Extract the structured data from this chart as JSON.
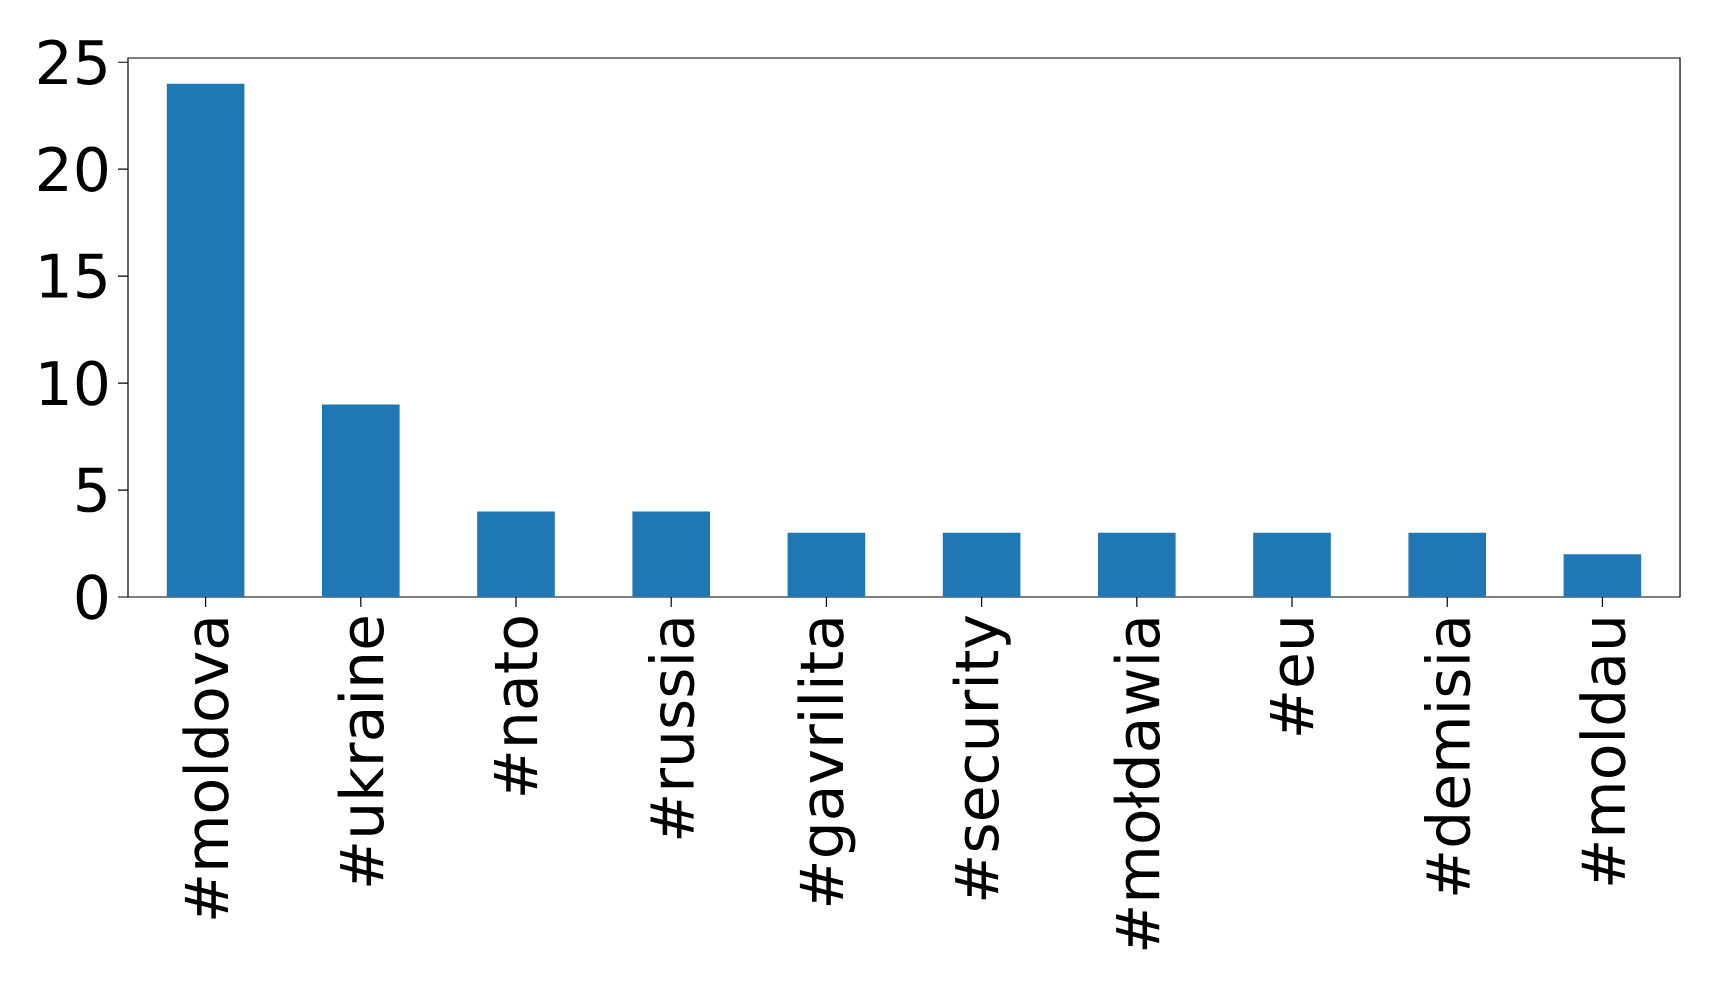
{
  "chart_data": {
    "type": "bar",
    "categories": [
      "#moldova",
      "#ukraine",
      "#nato",
      "#russia",
      "#gavrilita",
      "#security",
      "#mołdawia",
      "#eu",
      "#demisia",
      "#moldau"
    ],
    "values": [
      24,
      9,
      4,
      4,
      3,
      3,
      3,
      3,
      3,
      2
    ],
    "color": "#1f77b4",
    "ylim": [
      0,
      25.2
    ],
    "yticks": [
      0,
      5,
      10,
      15,
      20,
      25
    ]
  }
}
